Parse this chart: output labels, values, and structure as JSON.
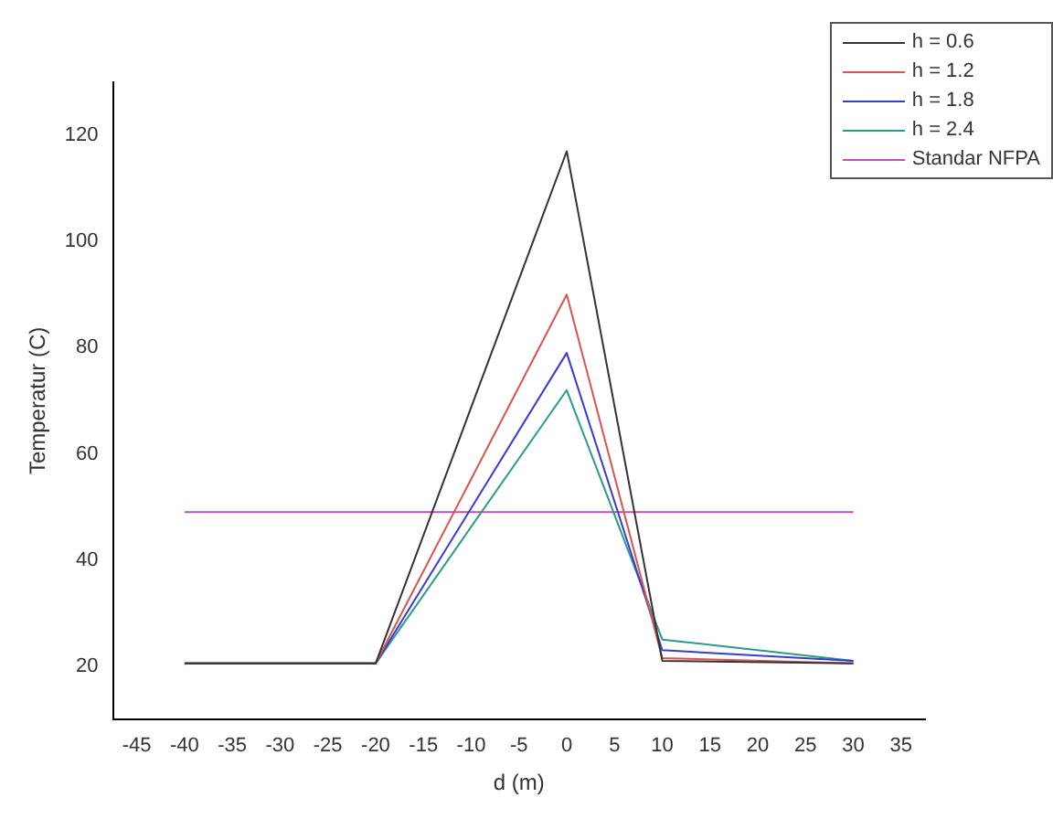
{
  "chart_data": {
    "type": "line",
    "xlabel": "d (m)",
    "ylabel": "Temperatur (C)",
    "x": [
      -40,
      -20,
      0,
      10,
      30
    ],
    "series": [
      {
        "name": "h = 0.6",
        "color": "#333333",
        "values": [
          20.5,
          20.5,
          117,
          21,
          20.5
        ]
      },
      {
        "name": "h = 1.2",
        "color": "#d9534f",
        "values": [
          20.5,
          20.5,
          90,
          21.5,
          20.5
        ]
      },
      {
        "name": "h = 1.8",
        "color": "#3a3ad0",
        "values": [
          20.5,
          20.5,
          79,
          23,
          21
        ]
      },
      {
        "name": "h = 2.4",
        "color": "#2a9a8a",
        "values": [
          20.5,
          20.5,
          72,
          25,
          21
        ]
      },
      {
        "name": "Standar NFPA",
        "color": "#c04fc0",
        "x": [
          -40,
          30
        ],
        "values": [
          49,
          49
        ]
      }
    ],
    "xlim": [
      -47.5,
      37.5
    ],
    "xticks": [
      -45,
      -40,
      -35,
      -30,
      -25,
      -20,
      -15,
      -10,
      -5,
      0,
      5,
      10,
      15,
      20,
      25,
      30,
      35
    ],
    "ylim": [
      10,
      130
    ],
    "yticks": [
      20,
      40,
      60,
      80,
      100,
      120
    ],
    "grid": false,
    "legend": "top right",
    "marker": "none",
    "line_style": "solid"
  }
}
